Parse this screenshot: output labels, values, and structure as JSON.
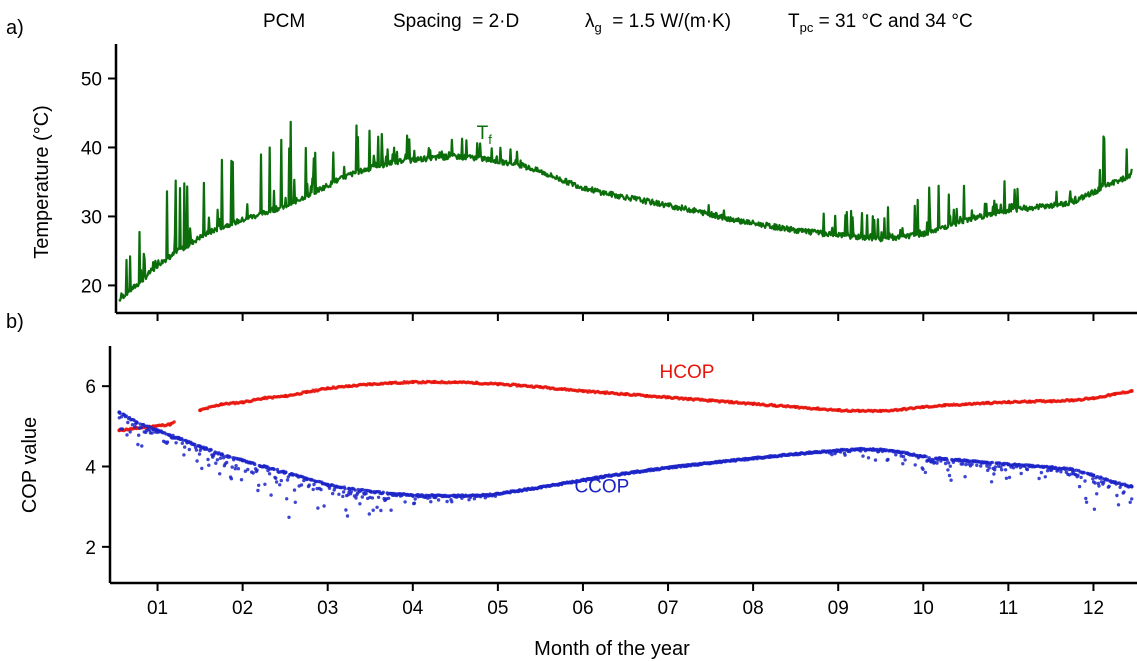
{
  "chart_data": [
    {
      "panel_label": "a)",
      "type": "line",
      "header": {
        "material": "PCM",
        "spacing": "Spacing  = 2·D",
        "lambda_symbol": "λ",
        "lambda_sub": "g",
        "lambda_text": "  = 1.5 W/(m·K)",
        "tpc_symbol": "T",
        "tpc_sub": "pc",
        "tpc_text": " = 31 °C and 34 °C"
      },
      "ylabel": "Temperature (°C)",
      "ylim": [
        16,
        55
      ],
      "yticks": [
        20,
        30,
        40,
        50
      ],
      "xlim": [
        0.5,
        12.5
      ],
      "grid": false,
      "annotation": {
        "main": "T",
        "sub": "f",
        "x": 4.75,
        "y": 41.2
      },
      "series": [
        {
          "label": "T_f",
          "color": "#0b6e0b",
          "x": [
            0.55,
            0.8,
            1.0,
            1.25,
            1.5,
            1.75,
            2.0,
            2.25,
            2.5,
            2.75,
            3.0,
            3.25,
            3.5,
            3.75,
            4.0,
            4.25,
            4.5,
            4.75,
            5.0,
            5.25,
            5.5,
            5.75,
            6.0,
            6.25,
            6.5,
            6.75,
            7.0,
            7.25,
            7.5,
            7.75,
            8.0,
            8.25,
            8.5,
            8.75,
            9.0,
            9.25,
            9.5,
            9.75,
            10.0,
            10.25,
            10.5,
            10.75,
            11.0,
            11.25,
            11.5,
            11.75,
            12.0,
            12.25,
            12.45
          ],
          "base": [
            18.0,
            20.5,
            23.0,
            25.0,
            27.0,
            28.5,
            29.5,
            30.5,
            31.5,
            33.0,
            34.5,
            36.0,
            37.0,
            37.8,
            38.2,
            38.5,
            38.7,
            38.5,
            38.0,
            37.5,
            36.5,
            35.3,
            34.2,
            33.4,
            32.8,
            32.2,
            31.6,
            31.0,
            30.3,
            29.6,
            29.0,
            28.5,
            28.0,
            27.6,
            27.3,
            27.0,
            26.8,
            27.0,
            27.5,
            28.5,
            29.5,
            30.2,
            30.8,
            31.2,
            31.6,
            32.0,
            33.5,
            35.0,
            36.0
          ],
          "peak": [
            20.0,
            31.0,
            34.0,
            36.0,
            37.0,
            39.0,
            38.0,
            40.0,
            46.0,
            42.0,
            41.0,
            44.0,
            44.0,
            45.0,
            42.0,
            43.0,
            42.0,
            41.0,
            40.0,
            40.0,
            38.0,
            36.5,
            35.5,
            34.5,
            34.0,
            33.5,
            33.0,
            32.5,
            32.0,
            31.0,
            30.0,
            29.5,
            29.0,
            30.0,
            32.0,
            30.5,
            31.0,
            32.5,
            34.0,
            35.0,
            36.0,
            37.0,
            35.0,
            33.0,
            33.5,
            34.0,
            43.0,
            41.0,
            40.0
          ]
        }
      ]
    },
    {
      "panel_label": "b)",
      "type": "scatter",
      "ylabel": "COP value",
      "xlabel": "Month of the year",
      "ylim": [
        1.1,
        7.0
      ],
      "yticks": [
        2,
        4,
        6
      ],
      "xlim": [
        0.5,
        12.5
      ],
      "xticks": [
        "01",
        "02",
        "03",
        "04",
        "05",
        "06",
        "07",
        "08",
        "09",
        "10",
        "11",
        "12"
      ],
      "grid": false,
      "series": [
        {
          "name": "HCOP",
          "color": "#e8140c",
          "label_pos": {
            "x": 6.9,
            "y": 6.2
          },
          "x": [
            0.55,
            0.75,
            0.95,
            1.15,
            1.5,
            1.75,
            2.0,
            2.25,
            2.5,
            2.75,
            3.0,
            3.25,
            3.5,
            3.75,
            4.0,
            4.25,
            4.5,
            4.75,
            5.0,
            5.25,
            5.5,
            5.75,
            6.0,
            6.25,
            6.5,
            6.75,
            7.0,
            7.25,
            7.5,
            7.75,
            8.0,
            8.25,
            8.5,
            8.75,
            9.0,
            9.25,
            9.5,
            9.75,
            10.0,
            10.25,
            10.5,
            10.75,
            11.0,
            11.25,
            11.5,
            11.75,
            12.0,
            12.25,
            12.45
          ],
          "y": [
            4.9,
            4.95,
            5.0,
            5.05,
            5.4,
            5.55,
            5.6,
            5.7,
            5.75,
            5.85,
            5.95,
            6.0,
            6.05,
            6.08,
            6.1,
            6.1,
            6.1,
            6.08,
            6.05,
            6.02,
            5.98,
            5.93,
            5.88,
            5.84,
            5.8,
            5.76,
            5.72,
            5.68,
            5.64,
            5.6,
            5.56,
            5.52,
            5.48,
            5.44,
            5.4,
            5.38,
            5.38,
            5.42,
            5.48,
            5.52,
            5.55,
            5.58,
            5.6,
            5.62,
            5.63,
            5.65,
            5.7,
            5.8,
            5.88
          ]
        },
        {
          "name": "CCOP",
          "color": "#1c24c8",
          "label_pos": {
            "x": 5.9,
            "y": 3.35
          },
          "x": [
            0.55,
            0.75,
            1.0,
            1.25,
            1.5,
            1.75,
            2.0,
            2.25,
            2.5,
            2.75,
            3.0,
            3.25,
            3.5,
            3.75,
            4.0,
            4.25,
            4.5,
            4.75,
            5.0,
            5.25,
            5.5,
            5.75,
            6.0,
            6.25,
            6.5,
            6.75,
            7.0,
            7.25,
            7.5,
            7.75,
            8.0,
            8.25,
            8.5,
            8.75,
            9.0,
            9.25,
            9.5,
            9.75,
            10.0,
            10.25,
            10.5,
            10.75,
            11.0,
            11.25,
            11.5,
            11.75,
            12.0,
            12.25,
            12.45
          ],
          "y": [
            5.35,
            5.1,
            4.9,
            4.7,
            4.5,
            4.3,
            4.15,
            4.0,
            3.85,
            3.7,
            3.55,
            3.45,
            3.38,
            3.32,
            3.28,
            3.27,
            3.27,
            3.28,
            3.32,
            3.4,
            3.48,
            3.57,
            3.66,
            3.75,
            3.83,
            3.9,
            3.97,
            4.03,
            4.09,
            4.15,
            4.2,
            4.26,
            4.31,
            4.36,
            4.4,
            4.43,
            4.42,
            4.35,
            4.25,
            4.18,
            4.15,
            4.1,
            4.05,
            4.02,
            3.98,
            3.93,
            3.78,
            3.6,
            3.5
          ],
          "dip": [
            0.4,
            0.6,
            0.6,
            0.7,
            0.7,
            0.8,
            0.7,
            0.8,
            1.1,
            1.0,
            0.6,
            0.7,
            0.6,
            0.5,
            0.2,
            0.2,
            0.15,
            0.1,
            0.05,
            0.05,
            0.0,
            0.0,
            0.0,
            0.0,
            0.0,
            0.0,
            0.0,
            0.0,
            0.0,
            0.0,
            0.0,
            0.0,
            0.0,
            0.05,
            0.1,
            0.2,
            0.3,
            0.3,
            0.4,
            0.5,
            0.5,
            0.6,
            0.4,
            0.3,
            0.3,
            0.4,
            0.9,
            0.6,
            0.5
          ]
        }
      ]
    }
  ]
}
